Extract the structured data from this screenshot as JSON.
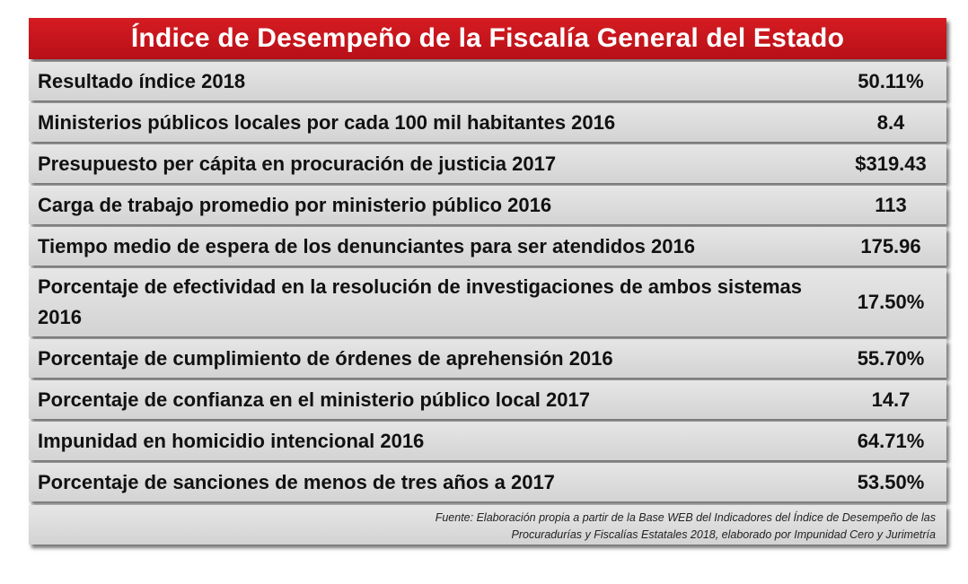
{
  "title": "Índice de Desempeño de la Fiscalía General del Estado",
  "rows": [
    {
      "label": "Resultado índice 2018",
      "value": "50.11%"
    },
    {
      "label": "Ministerios públicos locales por cada 100 mil habitantes 2016",
      "value": "8.4"
    },
    {
      "label": "Presupuesto per cápita en procuración de justicia 2017",
      "value": "$319.43"
    },
    {
      "label": "Carga de trabajo promedio por ministerio público 2016",
      "value": "113"
    },
    {
      "label": "Tiempo medio de espera de los denunciantes para ser atendidos 2016",
      "value": "175.96"
    },
    {
      "label": "Porcentaje de efectividad en la resolución de investigaciones de ambos sistemas 2016",
      "value": "17.50%"
    },
    {
      "label": "Porcentaje de cumplimiento de órdenes de aprehensión 2016",
      "value": "55.70%"
    },
    {
      "label": "Porcentaje de confianza en el ministerio público local 2017",
      "value": "14.7"
    },
    {
      "label": "Impunidad en homicidio intencional 2016",
      "value": "64.71%"
    },
    {
      "label": "Porcentaje de sanciones de menos de tres años a 2017",
      "value": "53.50%"
    }
  ],
  "source": {
    "line1": "Fuente: Elaboración propia a partir de la Base WEB del Indicadores del Índice de Desempeño de las",
    "line2": "Procuradurías y Fiscalías Estatales 2018, elaborado por Impunidad Cero y Jurimetría"
  },
  "colors": {
    "title_background": "#c8161d",
    "title_text": "#ffffff",
    "row_background": "#dcdcdc",
    "row_text": "#111111"
  }
}
